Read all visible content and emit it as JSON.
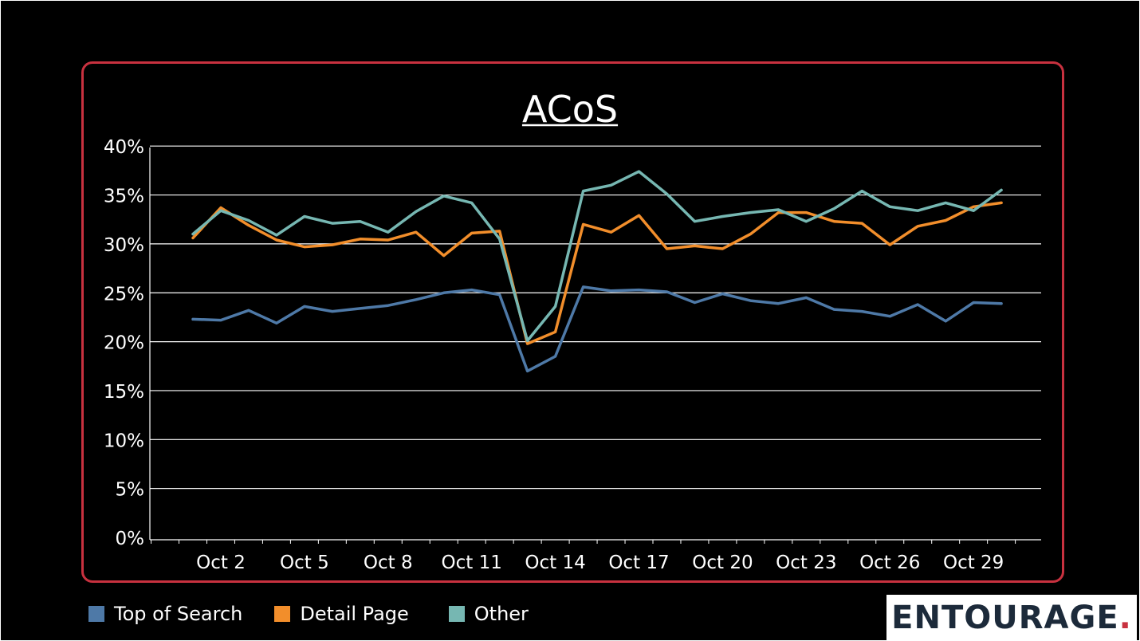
{
  "colors": {
    "background": "#000000",
    "frame_border": "#c8313f",
    "gridline": "#ffffff",
    "text": "#ffffff",
    "logo_text": "#1c2a3a",
    "logo_accent": "#c8313f"
  },
  "chart_data": {
    "type": "line",
    "title": "ACoS",
    "xlabel": "",
    "ylabel": "",
    "ylim": [
      0,
      40
    ],
    "y_ticks": [
      0,
      5,
      10,
      15,
      20,
      25,
      30,
      35,
      40
    ],
    "y_tick_labels": [
      "0%",
      "5%",
      "10%",
      "15%",
      "20%",
      "25%",
      "30%",
      "35%",
      "40%"
    ],
    "grid": true,
    "x": [
      "Oct 1",
      "Oct 2",
      "Oct 3",
      "Oct 4",
      "Oct 5",
      "Oct 6",
      "Oct 7",
      "Oct 8",
      "Oct 9",
      "Oct 10",
      "Oct 11",
      "Oct 12",
      "Oct 13",
      "Oct 14",
      "Oct 15",
      "Oct 16",
      "Oct 17",
      "Oct 18",
      "Oct 19",
      "Oct 20",
      "Oct 21",
      "Oct 22",
      "Oct 23",
      "Oct 24",
      "Oct 25",
      "Oct 26",
      "Oct 27",
      "Oct 28",
      "Oct 29",
      "Oct 30"
    ],
    "x_tick_labels": [
      {
        "label": "Oct 2",
        "index": 1
      },
      {
        "label": "Oct 5",
        "index": 4
      },
      {
        "label": "Oct 8",
        "index": 7
      },
      {
        "label": "Oct 11",
        "index": 10
      },
      {
        "label": "Oct 14",
        "index": 13
      },
      {
        "label": "Oct 17",
        "index": 16
      },
      {
        "label": "Oct 20",
        "index": 19
      },
      {
        "label": "Oct 23",
        "index": 22
      },
      {
        "label": "Oct 26",
        "index": 25
      },
      {
        "label": "Oct 29",
        "index": 28
      }
    ],
    "legend_position": "bottom-left",
    "series": [
      {
        "name": "Top of Search",
        "color": "#4e79a7",
        "values": [
          22.3,
          22.2,
          23.2,
          21.9,
          23.6,
          23.1,
          23.4,
          23.7,
          24.3,
          25.0,
          25.3,
          24.8,
          17.0,
          18.5,
          25.6,
          25.2,
          25.3,
          25.1,
          24.0,
          24.9,
          24.2,
          23.9,
          24.5,
          23.3,
          23.1,
          22.6,
          23.8,
          22.1,
          24.0,
          23.9
        ]
      },
      {
        "name": "Detail Page",
        "color": "#f28e2b",
        "values": [
          30.6,
          33.7,
          31.9,
          30.4,
          29.7,
          29.9,
          30.5,
          30.4,
          31.2,
          28.8,
          31.1,
          31.3,
          19.8,
          21.0,
          32.0,
          31.2,
          32.9,
          29.5,
          29.8,
          29.5,
          31.0,
          33.2,
          33.2,
          32.3,
          32.1,
          29.9,
          31.8,
          32.4,
          33.8,
          34.2
        ]
      },
      {
        "name": "Other",
        "color": "#76b7b2",
        "values": [
          31.0,
          33.4,
          32.4,
          30.9,
          32.8,
          32.1,
          32.3,
          31.2,
          33.3,
          34.9,
          34.2,
          30.5,
          20.1,
          23.6,
          35.4,
          36.0,
          37.4,
          35.1,
          32.3,
          32.8,
          33.2,
          33.5,
          32.3,
          33.6,
          35.4,
          33.8,
          33.4,
          34.2,
          33.4,
          35.5
        ]
      }
    ]
  },
  "logo": {
    "text": "ENTOURAGE",
    "accent": "."
  }
}
